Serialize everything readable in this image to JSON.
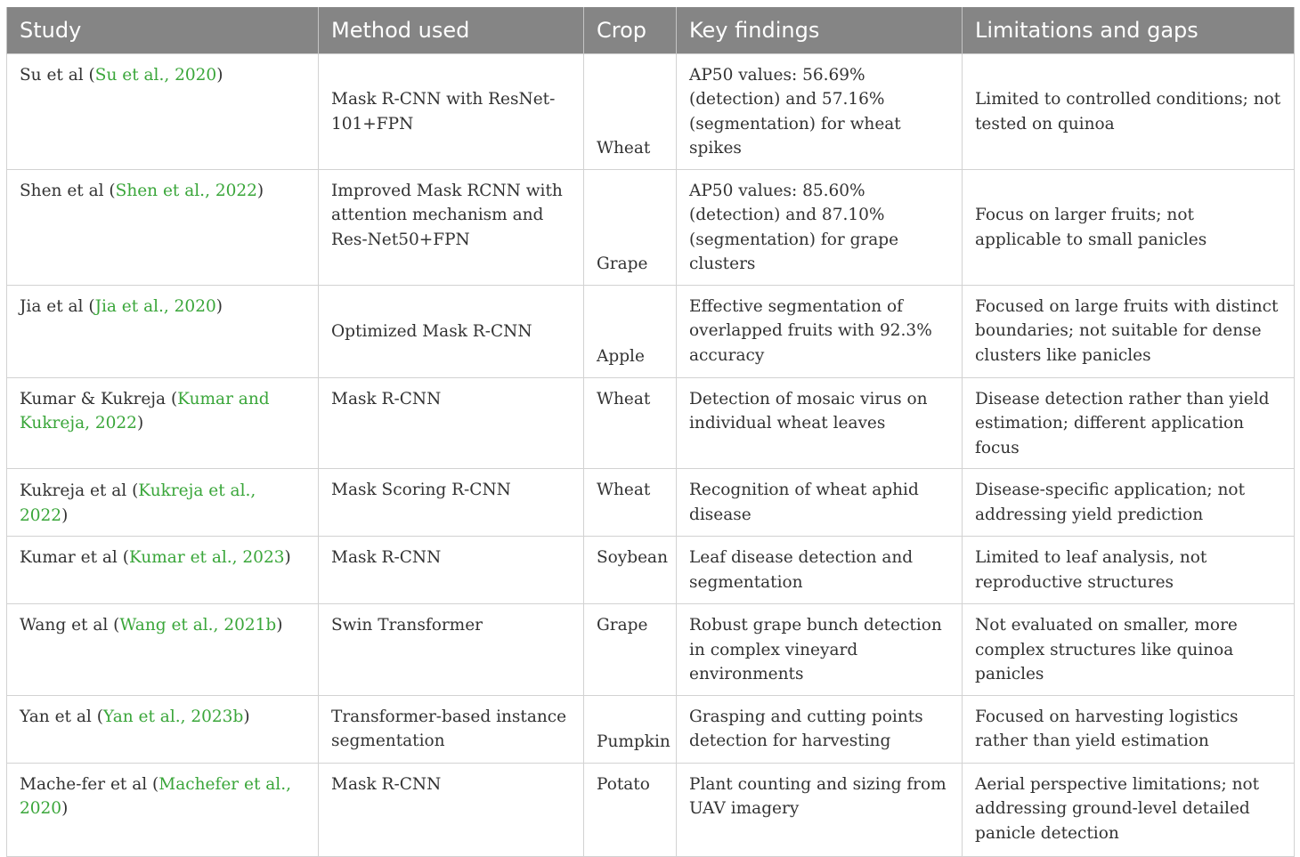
{
  "table": {
    "headers": [
      "Study",
      "Method used",
      "Crop",
      "Key findings",
      "Limitations and gaps"
    ],
    "rows": [
      {
        "study_author": "Su et al (",
        "study_cite": "Su et al., 2020",
        "study_close": ")",
        "method": "Mask R-CNN with ResNet-101+FPN",
        "crop": "Wheat",
        "findings": "AP50 values: 56.69% (detection) and 57.16% (segmentation) for wheat spikes",
        "limitations": "Limited to controlled conditions; not tested on quinoa"
      },
      {
        "study_author": "Shen et al (",
        "study_cite": "Shen et al., 2022",
        "study_close": ")",
        "method": "Improved Mask RCNN with attention mechanism and Res-Net50+FPN",
        "crop": "Grape",
        "findings": "AP50 values: 85.60% (detection) and 87.10% (segmentation) for grape clusters",
        "limitations": "Focus on larger fruits; not applicable to small panicles"
      },
      {
        "study_author": "Jia et al (",
        "study_cite": "Jia et al., 2020",
        "study_close": ")",
        "method": "Optimized Mask R-CNN",
        "crop": "Apple",
        "findings": "Effective segmentation of overlapped fruits with 92.3% accuracy",
        "limitations": "Focused on large fruits with distinct boundaries; not suitable for dense clusters like panicles"
      },
      {
        "study_author": "Kumar & Kukreja (",
        "study_cite": "Kumar and Kukreja, 2022",
        "study_close": ")",
        "method": "Mask R-CNN",
        "crop": "Wheat",
        "findings": "Detection of mosaic virus on individual wheat leaves",
        "limitations": "Disease detection rather than yield estimation; different application focus"
      },
      {
        "study_author": "Kukreja et al (",
        "study_cite": "Kukreja et al., 2022",
        "study_close": ")",
        "method": "Mask Scoring R-CNN",
        "crop": "Wheat",
        "findings": "Recognition of wheat aphid disease",
        "limitations": "Disease-specific application; not addressing yield prediction"
      },
      {
        "study_author": "Kumar et al (",
        "study_cite": "Kumar et al., 2023",
        "study_close": ")",
        "method": "Mask R-CNN",
        "crop": "Soybean",
        "findings": "Leaf disease detection and segmentation",
        "limitations": "Limited to leaf analysis, not reproductive structures"
      },
      {
        "study_author": "Wang et al (",
        "study_cite": "Wang et al., 2021b",
        "study_close": ")",
        "method": "Swin Transformer",
        "crop": "Grape",
        "findings": "Robust grape bunch detection in complex vineyard environments",
        "limitations": "Not evaluated on smaller, more complex structures like quinoa panicles"
      },
      {
        "study_author": "Yan et al (",
        "study_cite": "Yan et al., 2023b",
        "study_close": ")",
        "method": "Transformer-based instance segmentation",
        "crop": "Pumpkin",
        "findings": "Grasping and cutting points detection for harvesting",
        "limitations": "Focused on harvesting logistics rather than yield estimation"
      },
      {
        "study_author": "Mache-fer et al (",
        "study_cite": "Machefer et al., 2020",
        "study_close": ")",
        "method": "Mask R-CNN",
        "crop": "Potato",
        "findings": "Plant counting and sizing from UAV imagery",
        "limitations": "Aerial perspective limitations; not addressing ground-level detailed panicle detection"
      }
    ]
  }
}
